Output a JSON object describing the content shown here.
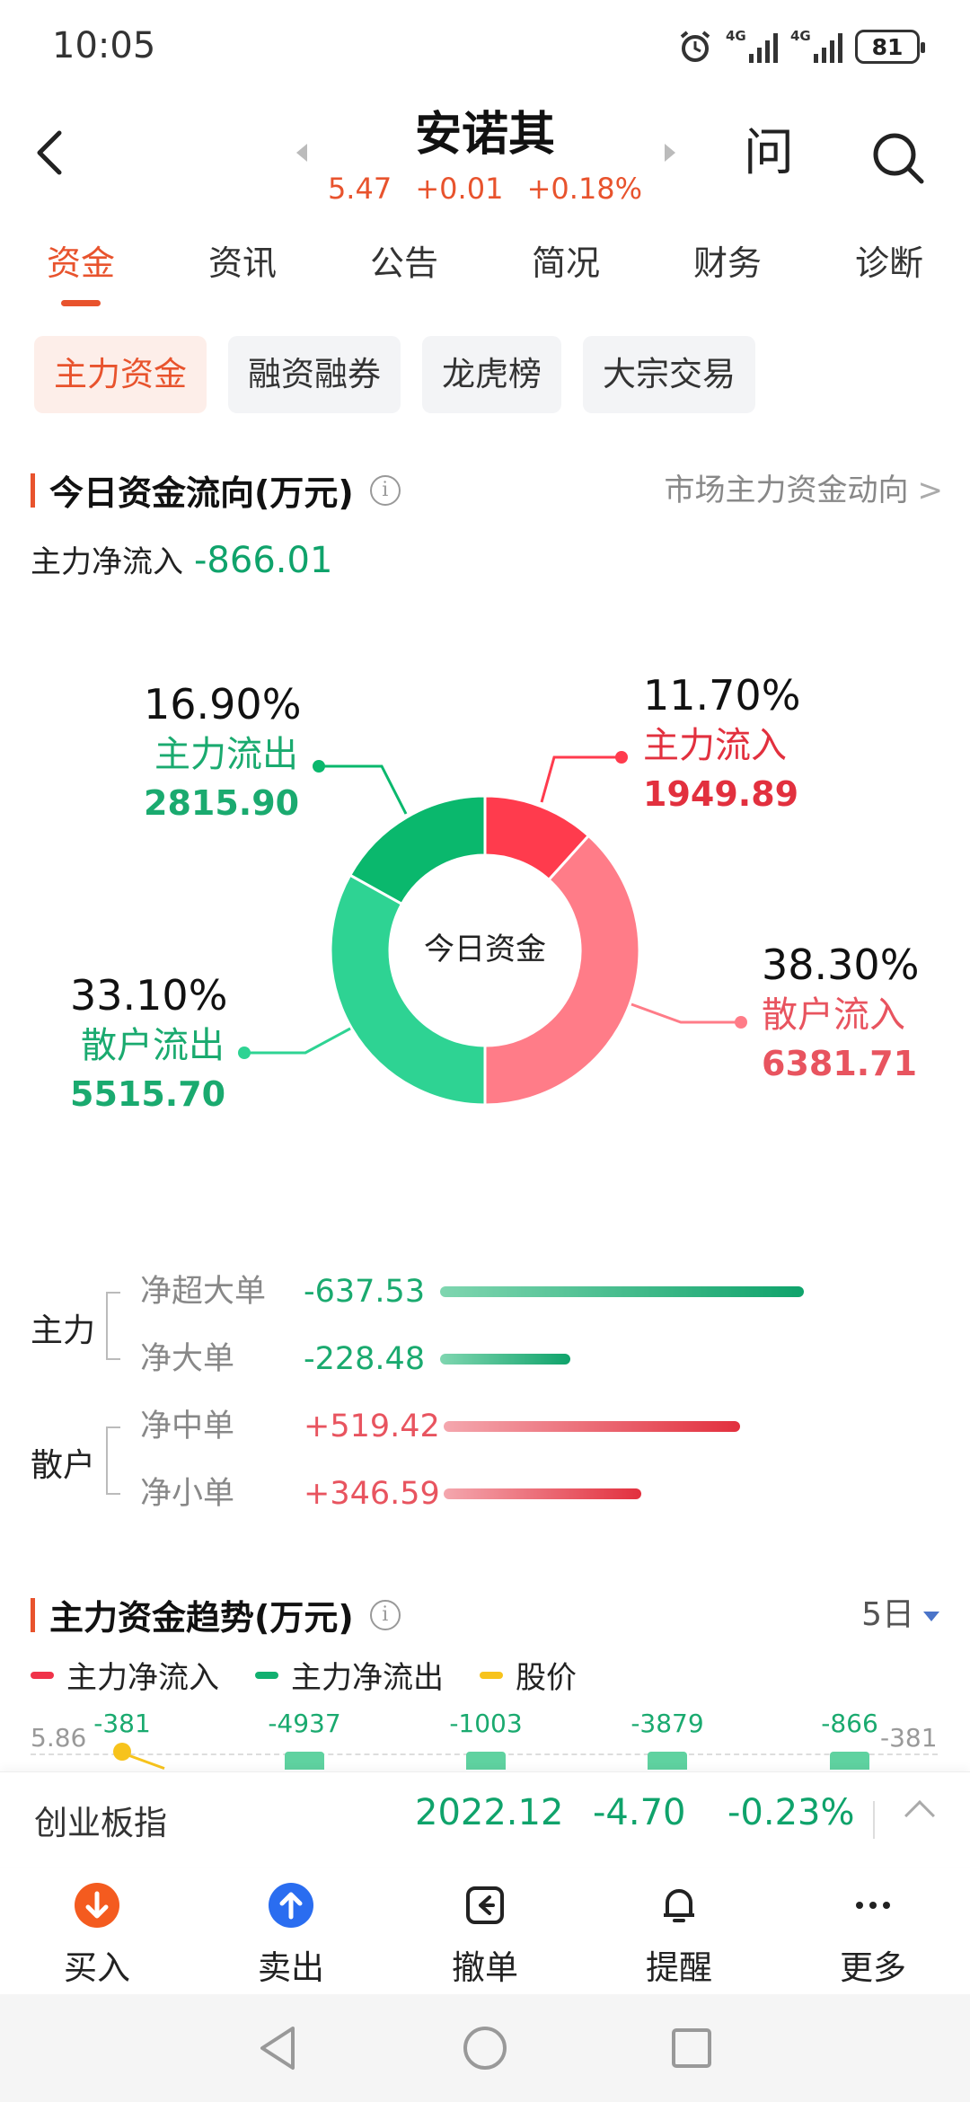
{
  "status_bar": {
    "time": "10:05",
    "network1": "4G",
    "network2": "4G",
    "battery": "81"
  },
  "header": {
    "title": "安诺其",
    "price": "5.47",
    "change": "+0.01",
    "change_pct": "+0.18%",
    "ask_label": "问"
  },
  "tabs": [
    {
      "label": "资金",
      "active": true
    },
    {
      "label": "资讯"
    },
    {
      "label": "公告"
    },
    {
      "label": "简况"
    },
    {
      "label": "财务"
    },
    {
      "label": "诊断"
    }
  ],
  "subtabs": [
    {
      "label": "主力资金",
      "active": true
    },
    {
      "label": "融资融券"
    },
    {
      "label": "龙虎榜"
    },
    {
      "label": "大宗交易"
    }
  ],
  "flow_section": {
    "title": "今日资金流向(万元)",
    "link": "市场主力资金动向",
    "net_label": "主力净流入",
    "net_value": "-866.01",
    "center_label": "今日资金"
  },
  "chart_data": {
    "type": "pie",
    "center_label": "今日资金",
    "slices": [
      {
        "name": "主力流入",
        "pct_label": "11.70%",
        "value_label": "1949.89",
        "pct": 11.7,
        "value": 1949.89,
        "color": "#ff3b4d"
      },
      {
        "name": "散户流入",
        "pct_label": "38.30%",
        "value_label": "6381.71",
        "pct": 38.3,
        "value": 6381.71,
        "color": "#ff7c88"
      },
      {
        "name": "散户流出",
        "pct_label": "33.10%",
        "value_label": "5515.70",
        "pct": 33.1,
        "value": 5515.7,
        "color": "#2ed393"
      },
      {
        "name": "主力流出",
        "pct_label": "16.90%",
        "value_label": "2815.90",
        "pct": 16.9,
        "value": 2815.9,
        "color": "#0ab86d"
      }
    ]
  },
  "flow_breakdown": {
    "main_label": "主力",
    "retail_label": "散户",
    "rows": [
      {
        "name": "净超大单",
        "value": "-637.53",
        "amount": 637.53,
        "sign": "neg"
      },
      {
        "name": "净大单",
        "value": "-228.48",
        "amount": 228.48,
        "sign": "neg"
      },
      {
        "name": "净中单",
        "value": "+519.42",
        "amount": 519.42,
        "sign": "pos"
      },
      {
        "name": "净小单",
        "value": "+346.59",
        "amount": 346.59,
        "sign": "pos"
      }
    ]
  },
  "trend_section": {
    "title": "主力资金趋势(万元)",
    "period": "5日",
    "legend": [
      {
        "label": "主力净流入",
        "color": "#f0334a"
      },
      {
        "label": "主力净流出",
        "color": "#12b070"
      },
      {
        "label": "股价",
        "color": "#f7c31c"
      }
    ],
    "axis_left": "5.86",
    "axis_right": "-381",
    "values": [
      "-381",
      "-4937",
      "-1003",
      "-3879",
      "-866"
    ]
  },
  "index_bar": {
    "name": "创业板指",
    "value": "2022.12",
    "change": "-4.70",
    "change_pct": "-0.23%"
  },
  "actions": [
    {
      "label": "买入",
      "icon": "buy-icon",
      "color": "#f45b1f"
    },
    {
      "label": "卖出",
      "icon": "sell-icon",
      "color": "#2a6df0"
    },
    {
      "label": "撤单",
      "icon": "cancel-order-icon"
    },
    {
      "label": "提醒",
      "icon": "bell-icon"
    },
    {
      "label": "更多",
      "icon": "more-icon"
    }
  ]
}
